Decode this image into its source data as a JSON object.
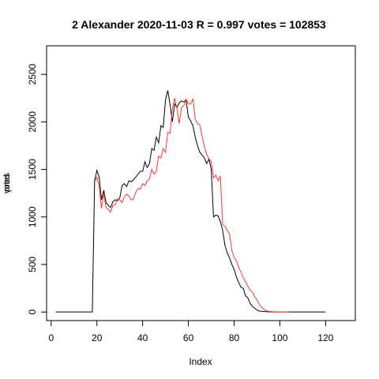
{
  "chart_data": {
    "type": "line",
    "title": "2 Alexander 2020-11-03 R = 0.997 votes = 102853",
    "xlabel": "Index",
    "ylabel_a": "votes",
    "ylabel_b": "pred",
    "xlim": [
      -2,
      133
    ],
    "ylim": [
      -90,
      2800
    ],
    "x_ticks": [
      0,
      20,
      40,
      60,
      80,
      100,
      120
    ],
    "y_ticks": [
      0,
      500,
      1000,
      1500,
      2000,
      2500
    ],
    "grid": false,
    "series": [
      {
        "role": "votes",
        "color": "#000000",
        "x_start": 2,
        "values": [
          0,
          0,
          0,
          0,
          0,
          0,
          0,
          0,
          0,
          0,
          0,
          0,
          0,
          0,
          0,
          0,
          0,
          1380,
          1490,
          1420,
          1180,
          1280,
          1150,
          1120,
          1100,
          1160,
          1180,
          1170,
          1200,
          1330,
          1350,
          1320,
          1380,
          1370,
          1390,
          1420,
          1450,
          1480,
          1480,
          1580,
          1520,
          1560,
          1720,
          1700,
          1840,
          1780,
          1960,
          1940,
          2230,
          2330,
          2180,
          2000,
          2190,
          2150,
          2200,
          2220,
          2210,
          2230,
          2050,
          2010,
          1960,
          1840,
          1750,
          1680,
          1650,
          1620,
          1560,
          1610,
          1500,
          1000,
          1020,
          1010,
          950,
          860,
          700,
          620,
          570,
          500,
          450,
          370,
          310,
          260,
          250,
          170,
          150,
          90,
          60,
          40,
          20,
          10,
          8,
          5,
          3,
          2,
          1,
          1,
          0,
          0,
          0,
          0,
          0,
          0,
          0,
          0,
          0,
          0,
          0,
          0,
          0,
          0,
          0,
          0,
          0,
          0,
          0,
          0,
          0,
          0,
          0
        ]
      },
      {
        "role": "pred",
        "color": "#ff3333",
        "x_start": 19,
        "values": [
          1370,
          1420,
          1320,
          1090,
          1250,
          1100,
          1080,
          1050,
          1120,
          1130,
          1190,
          1180,
          1150,
          1210,
          1240,
          1220,
          1180,
          1190,
          1260,
          1300,
          1290,
          1350,
          1330,
          1380,
          1400,
          1500,
          1450,
          1480,
          1640,
          1620,
          1720,
          1680,
          1890,
          1880,
          2140,
          2250,
          2140,
          1980,
          2150,
          2170,
          2240,
          2190,
          2190,
          2240,
          2030,
          1980,
          1970,
          1850,
          1740,
          1660,
          1610,
          1580,
          1410,
          1440,
          1380,
          1430,
          920,
          900,
          860,
          820,
          650,
          570,
          540,
          470,
          420,
          360,
          320,
          270,
          230,
          210,
          160,
          130,
          80,
          50,
          30,
          15,
          8,
          5,
          3,
          2,
          1,
          0,
          0,
          0,
          0,
          0
        ]
      }
    ]
  }
}
